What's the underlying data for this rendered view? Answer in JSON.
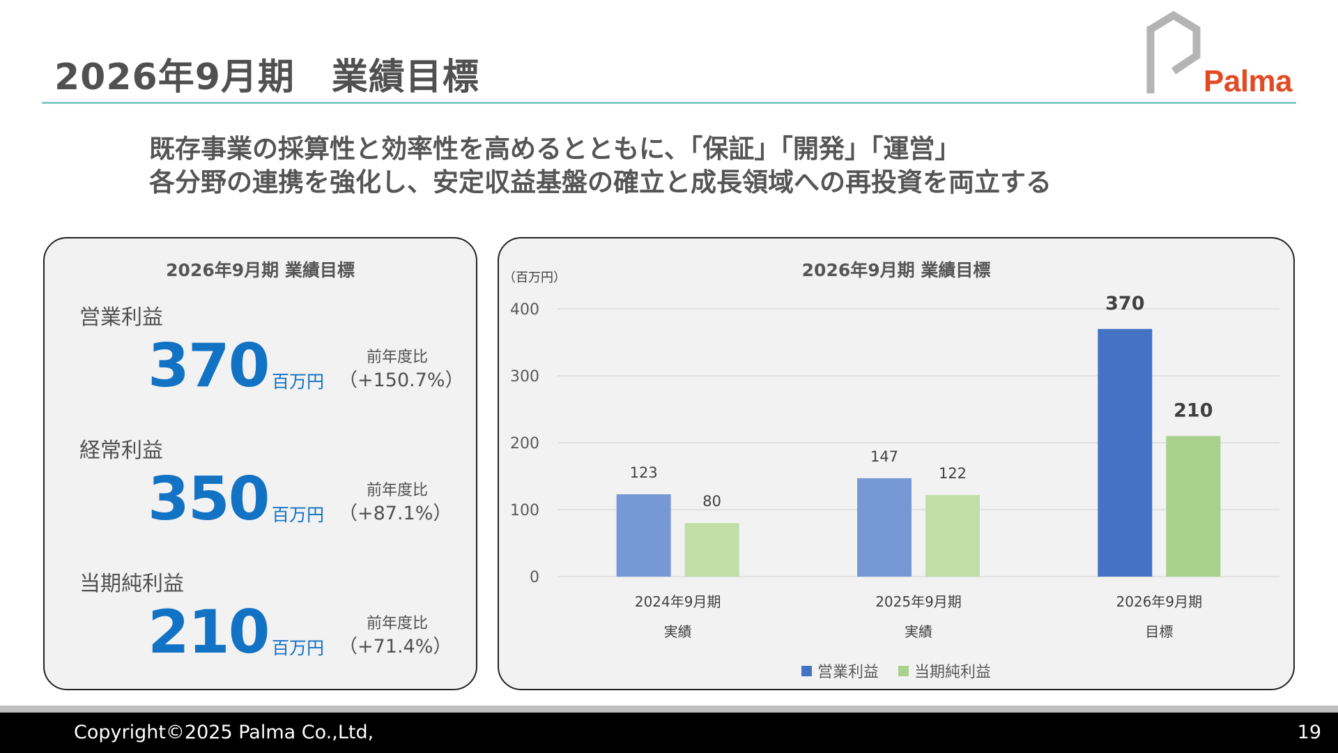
{
  "header": {
    "title": "2026年9月期　業績目標",
    "logo_text": "Palma"
  },
  "subtitle": {
    "line1": "既存事業の採算性と効率性を高めるとともに、「保証」「開発」「運営」",
    "line2": "各分野の連携を強化し、安定収益基盤の確立と成長領域への再投資を両立する"
  },
  "kpi_panel": {
    "title": "2026年9月期 業績目標",
    "items": [
      {
        "label": "営業利益",
        "value": "370",
        "unit": "百万円",
        "cmp_label": "前年度比",
        "cmp_value": "（+150.7%）"
      },
      {
        "label": "経常利益",
        "value": "350",
        "unit": "百万円",
        "cmp_label": "前年度比",
        "cmp_value": "（+87.1%）"
      },
      {
        "label": "当期純利益",
        "value": "210",
        "unit": "百万円",
        "cmp_label": "前年度比",
        "cmp_value": "（+71.4%）"
      }
    ]
  },
  "colors": {
    "accent_blue": "#1272c4",
    "rule_teal": "#7fcdc6",
    "logo_gray": "#b4b4b4",
    "logo_red": "#e24a24"
  },
  "chart_data": {
    "type": "bar",
    "title": "2026年9月期 業績目標",
    "ylabel": "（百万円）",
    "xlabel": "",
    "ylim": [
      0,
      400
    ],
    "yticks": [
      "0",
      "100",
      "200",
      "300",
      "400"
    ],
    "categories": [
      "2024年9月期",
      "2025年9月期",
      "2026年9月期"
    ],
    "category_sublabels": [
      "実績",
      "実績",
      "目標"
    ],
    "grid": true,
    "legend_position": "bottom",
    "series": [
      {
        "name": "営業利益",
        "values": [
          123,
          147,
          370
        ],
        "colors": [
          "#7698d4",
          "#7698d4",
          "#4472c4"
        ]
      },
      {
        "name": "当期純利益",
        "values": [
          80,
          122,
          210
        ],
        "colors": [
          "#c1dea9",
          "#c1dea9",
          "#a9d18e"
        ]
      }
    ],
    "legend_colors": [
      "#4472c4",
      "#a9d18e"
    ]
  },
  "footer": {
    "copyright": "Copyright©2025 Palma Co.,Ltd,",
    "page_number": "19"
  }
}
